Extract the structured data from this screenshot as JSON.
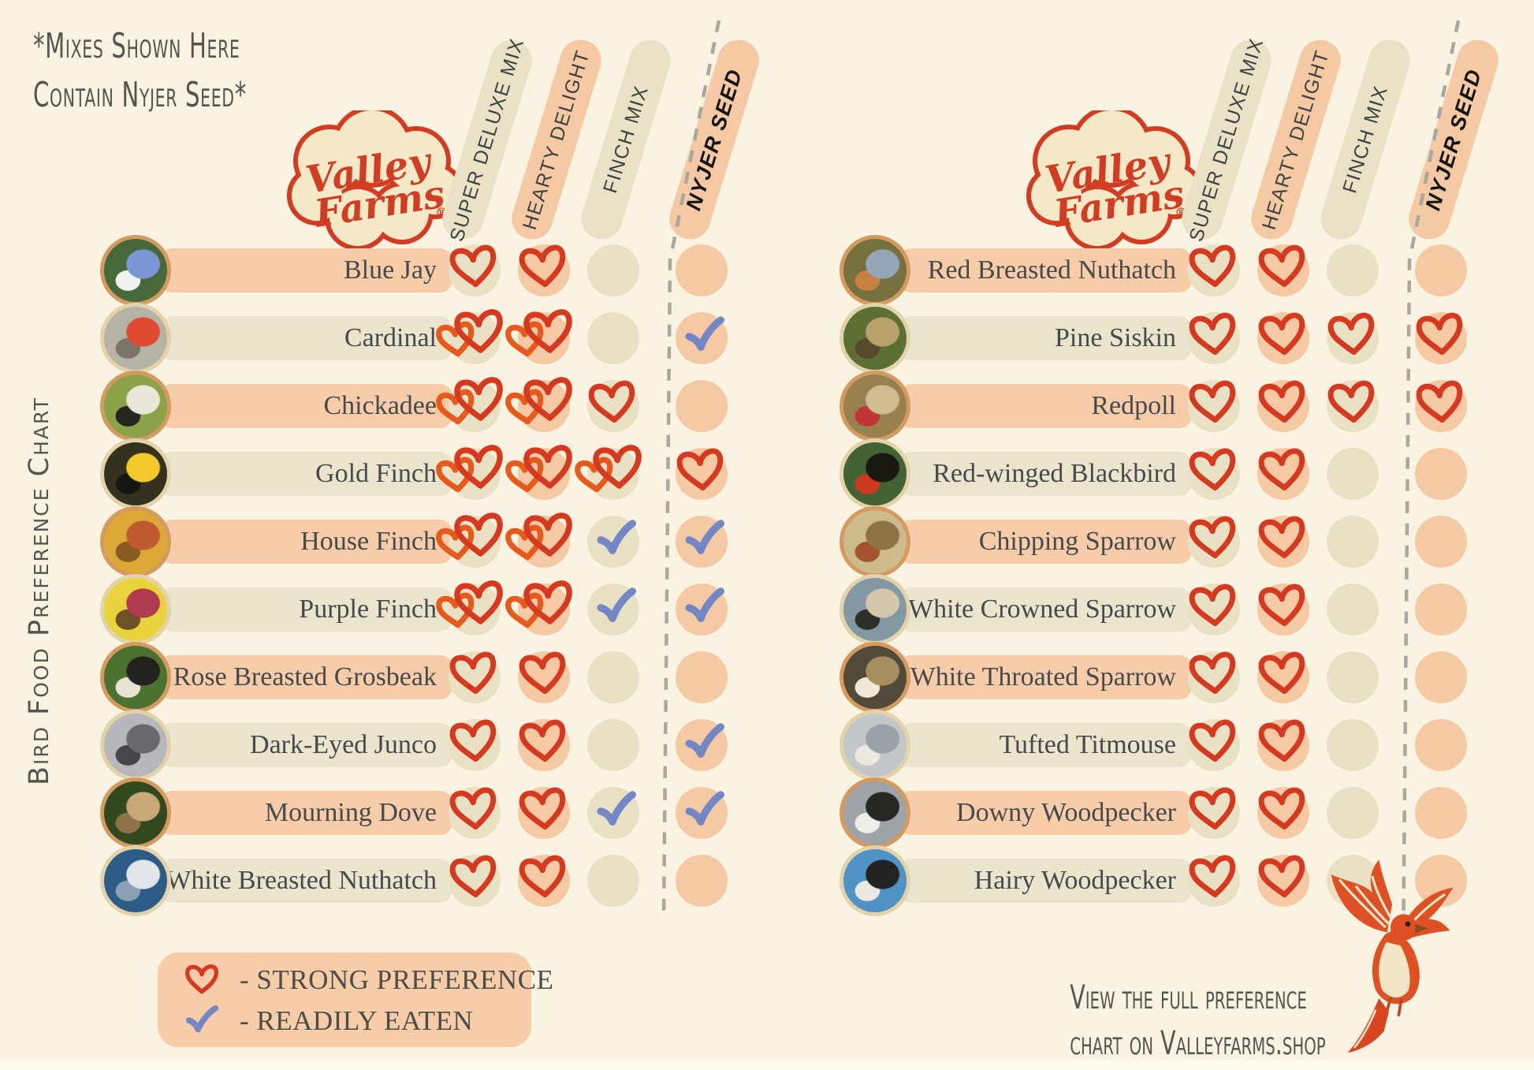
{
  "palette": {
    "background": "#faf3e1",
    "peach": "#f5c9a3",
    "cream": "#eae2c7",
    "heart_red": "#d53a20",
    "heart_orange": "#e8591c",
    "check_blue": "#7386c5",
    "text_dark": "#474a4d",
    "note_gray": "#53554e",
    "logo_red": "#d23c22",
    "logo_cream": "#f4e8c7",
    "dash_gray": "#a8a89e"
  },
  "note": {
    "line1": "*Mixes Shown Here",
    "line2": "Contain Nyjer Seed*"
  },
  "side_title": "Bird Food Preference Chart",
  "logo": {
    "line1": "Valley",
    "line2": "Farms",
    "registered": "®"
  },
  "columns": [
    {
      "label": "SUPER DELUXE MIX",
      "tone": "cream",
      "emphasis": false
    },
    {
      "label": "HEARTY DELIGHT",
      "tone": "peach",
      "emphasis": false
    },
    {
      "label": "FINCH MIX",
      "tone": "cream",
      "emphasis": false
    },
    {
      "label": "NYJER SEED",
      "tone": "peach",
      "emphasis": true
    }
  ],
  "legend": {
    "items": [
      {
        "icon": "heart",
        "label": "- STRONG PREFERENCE"
      },
      {
        "icon": "check",
        "label": "- READILY EATEN"
      }
    ]
  },
  "footer": {
    "line1": "View the full preference",
    "line2": "chart on Valleyfarms.shop"
  },
  "chart_data": {
    "type": "table",
    "title": "Bird Food Preference Chart",
    "columns": [
      "SUPER DELUXE MIX",
      "HEARTY DELIGHT",
      "FINCH MIX",
      "NYJER SEED"
    ],
    "mark_legend": {
      "heart": "strong preference",
      "heart2": "strong preference (double heart)",
      "check": "readily eaten",
      "none": "no mark"
    },
    "tables": [
      {
        "rows": [
          {
            "name": "Blue Jay",
            "marks": [
              "heart",
              "heart",
              "none",
              "none"
            ],
            "photo": [
              "#47683a",
              "#7b97d6",
              "#f0f2ef"
            ]
          },
          {
            "name": "Cardinal",
            "marks": [
              "heart2",
              "heart2",
              "none",
              "check"
            ],
            "photo": [
              "#b7b2a6",
              "#df4a31",
              "#7c7668"
            ]
          },
          {
            "name": "Chickadee",
            "marks": [
              "heart2",
              "heart2",
              "heart",
              "none"
            ],
            "photo": [
              "#8aa348",
              "#e9e6da",
              "#26261f"
            ]
          },
          {
            "name": "Gold Finch",
            "marks": [
              "heart2",
              "heart2",
              "heart2",
              "heart"
            ],
            "photo": [
              "#34311f",
              "#f2ca2b",
              "#171711"
            ]
          },
          {
            "name": "House Finch",
            "marks": [
              "heart2",
              "heart2",
              "check",
              "check"
            ],
            "photo": [
              "#dca937",
              "#c05a30",
              "#8c5a23"
            ]
          },
          {
            "name": "Purple Finch",
            "marks": [
              "heart2",
              "heart2",
              "check",
              "check"
            ],
            "photo": [
              "#ead43e",
              "#b03a4e",
              "#705026"
            ]
          },
          {
            "name": "Rose Breasted Grosbeak",
            "marks": [
              "heart",
              "heart",
              "none",
              "none"
            ],
            "photo": [
              "#4c7231",
              "#24221f",
              "#e9e3d3"
            ]
          },
          {
            "name": "Dark-Eyed Junco",
            "marks": [
              "heart",
              "heart",
              "none",
              "check"
            ],
            "photo": [
              "#b6b8bb",
              "#67696d",
              "#45474b"
            ]
          },
          {
            "name": "Mourning Dove",
            "marks": [
              "heart",
              "heart",
              "check",
              "check"
            ],
            "photo": [
              "#32491f",
              "#c9a878",
              "#8e7248"
            ]
          },
          {
            "name": "White Breasted Nuthatch",
            "marks": [
              "heart",
              "heart",
              "none",
              "none"
            ],
            "photo": [
              "#2d5d86",
              "#e3e6e8",
              "#8ba0b2"
            ]
          }
        ]
      },
      {
        "rows": [
          {
            "name": "Red Breasted Nuthatch",
            "marks": [
              "heart",
              "heart",
              "none",
              "none"
            ],
            "photo": [
              "#77713f",
              "#93a7b8",
              "#c7803f"
            ]
          },
          {
            "name": "Pine Siskin",
            "marks": [
              "heart",
              "heart",
              "heart",
              "heart"
            ],
            "photo": [
              "#5d7034",
              "#b7a26c",
              "#574a2d"
            ]
          },
          {
            "name": "Redpoll",
            "marks": [
              "heart",
              "heart",
              "heart",
              "heart"
            ],
            "photo": [
              "#97824f",
              "#d0bb93",
              "#c23536"
            ]
          },
          {
            "name": "Red-winged Blackbird",
            "marks": [
              "heart",
              "heart",
              "none",
              "none"
            ],
            "photo": [
              "#436334",
              "#191911",
              "#cb3a1b"
            ]
          },
          {
            "name": "Chipping Sparrow",
            "marks": [
              "heart",
              "heart",
              "none",
              "none"
            ],
            "photo": [
              "#cdbb8d",
              "#8d7347",
              "#a2542e"
            ]
          },
          {
            "name": "White Crowned Sparrow",
            "marks": [
              "heart",
              "heart",
              "none",
              "none"
            ],
            "photo": [
              "#8298a5",
              "#d3c8ab",
              "#2e2e2a"
            ]
          },
          {
            "name": "White Throated Sparrow",
            "marks": [
              "heart",
              "heart",
              "none",
              "none"
            ],
            "photo": [
              "#514a39",
              "#a68e61",
              "#f0e9d9"
            ]
          },
          {
            "name": "Tufted Titmouse",
            "marks": [
              "heart",
              "heart",
              "none",
              "none"
            ],
            "photo": [
              "#c3c7ca",
              "#9aa2a9",
              "#ece7e0"
            ]
          },
          {
            "name": "Downy Woodpecker",
            "marks": [
              "heart",
              "heart",
              "none",
              "none"
            ],
            "photo": [
              "#9da3a7",
              "#26271f",
              "#efede7"
            ]
          },
          {
            "name": "Hairy Woodpecker",
            "marks": [
              "heart",
              "heart",
              "none",
              "none"
            ],
            "photo": [
              "#4e92c6",
              "#222320",
              "#eae8e1"
            ]
          }
        ]
      }
    ]
  }
}
